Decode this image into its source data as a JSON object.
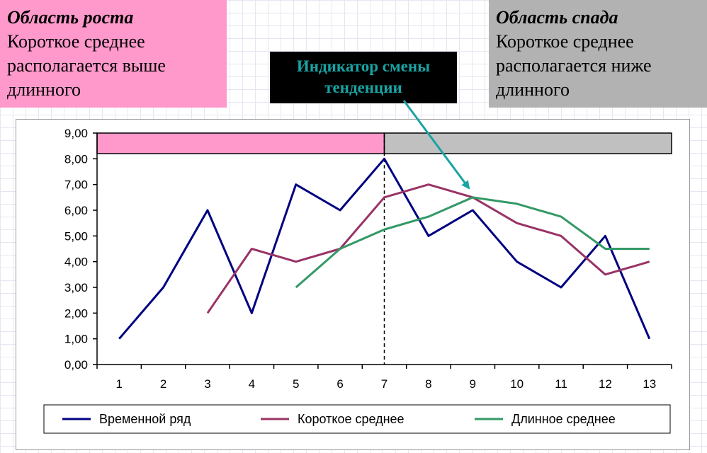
{
  "growth_box": {
    "title": "Область роста",
    "lines": [
      "Короткое среднее",
      "располагается выше",
      "длинного"
    ],
    "color": "#ff99cc"
  },
  "decline_box": {
    "title": "Область спада",
    "lines": [
      "Короткое среднее",
      "располагается ниже",
      "длинного"
    ],
    "color": "#b2b2b2"
  },
  "indicator": {
    "lines": [
      "Индикатор смены",
      "тенденции"
    ],
    "text_color": "#1aa3a3",
    "arrow_color": "#1aa3a3"
  },
  "chart_data": {
    "type": "line",
    "x": [
      1,
      2,
      3,
      4,
      5,
      6,
      7,
      8,
      9,
      10,
      11,
      12,
      13
    ],
    "x_tick_labels": [
      "1",
      "2",
      "3",
      "4",
      "5",
      "6",
      "7",
      "8",
      "9",
      "10",
      "11",
      "12",
      "13"
    ],
    "ylim": [
      0,
      9
    ],
    "y_tick_labels": [
      "0,00",
      "1,00",
      "2,00",
      "3,00",
      "4,00",
      "5,00",
      "6,00",
      "7,00",
      "8,00",
      "9,00"
    ],
    "grid": false,
    "legend_position": "bottom",
    "series": [
      {
        "name": "Временной ряд",
        "color": "#000080",
        "values": [
          1,
          3,
          6,
          2,
          7,
          6,
          8,
          5,
          6,
          4,
          3,
          5,
          1
        ]
      },
      {
        "name": "Короткое среднее",
        "color": "#993366",
        "values": [
          null,
          null,
          2,
          4.5,
          4,
          4.5,
          6.5,
          7,
          6.5,
          5.5,
          5,
          3.5,
          4
        ]
      },
      {
        "name": "Длинное среднее",
        "color": "#339966",
        "values": [
          null,
          null,
          null,
          null,
          3,
          4.5,
          5.25,
          5.75,
          6.5,
          6.25,
          5.75,
          4.5,
          4.5
        ]
      }
    ],
    "bands": [
      {
        "from_x": 0.5,
        "to_x": 7,
        "color": "#ff99cc"
      },
      {
        "from_x": 7,
        "to_x": 13.5,
        "color": "#c0c0c0"
      }
    ],
    "divider_x": 7
  }
}
